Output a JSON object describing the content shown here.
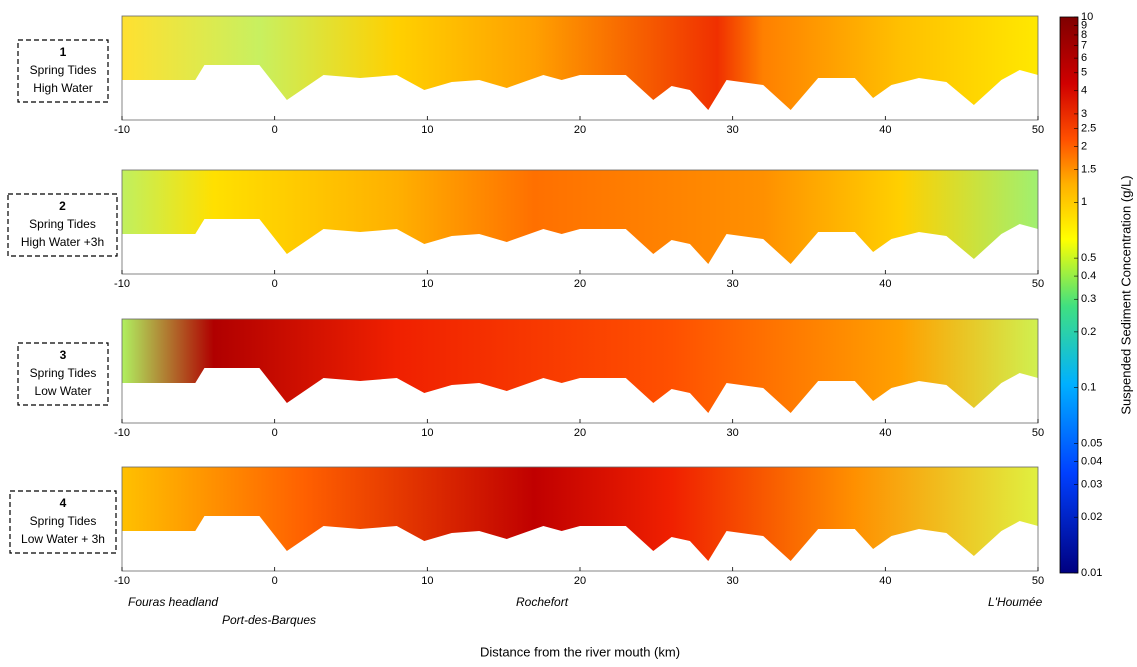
{
  "chart_data": [
    {
      "type": "contour",
      "label": [
        "1",
        "Spring Tides",
        "High Water"
      ],
      "xlim": [
        -10,
        50
      ],
      "xticks": [
        -10,
        0,
        10,
        20,
        30,
        40,
        50
      ]
    },
    {
      "type": "contour",
      "label": [
        "2",
        "Spring Tides",
        "High Water +3h"
      ],
      "xlim": [
        -10,
        50
      ],
      "xticks": [
        -10,
        0,
        10,
        20,
        30,
        40,
        50
      ]
    },
    {
      "type": "contour",
      "label": [
        "3",
        "Spring Tides",
        "Low Water"
      ],
      "xlim": [
        -10,
        50
      ],
      "xticks": [
        -10,
        0,
        10,
        20,
        30,
        40,
        50
      ]
    },
    {
      "type": "contour",
      "label": [
        "4",
        "Spring Tides",
        "Low Water + 3h"
      ],
      "xlim": [
        -10,
        50
      ],
      "xticks": [
        -10,
        0,
        10,
        20,
        30,
        40,
        50
      ]
    }
  ],
  "colorbar": {
    "title": "Suspended Sediment Concentration (g/L)",
    "log_scale": true,
    "clim": [
      0.01,
      10
    ],
    "ticks": [
      10,
      9,
      8,
      7,
      6,
      5,
      4,
      3,
      2.5,
      2,
      1.5,
      1,
      0.5,
      0.4,
      0.3,
      0.2,
      0.1,
      0.05,
      0.04,
      0.03,
      0.02,
      0.01
    ]
  },
  "xlabel": "Distance from the river mouth (km)",
  "places": [
    "Fouras headland",
    "Port-des-Barques",
    "Rochefort",
    "L'Houmée"
  ]
}
